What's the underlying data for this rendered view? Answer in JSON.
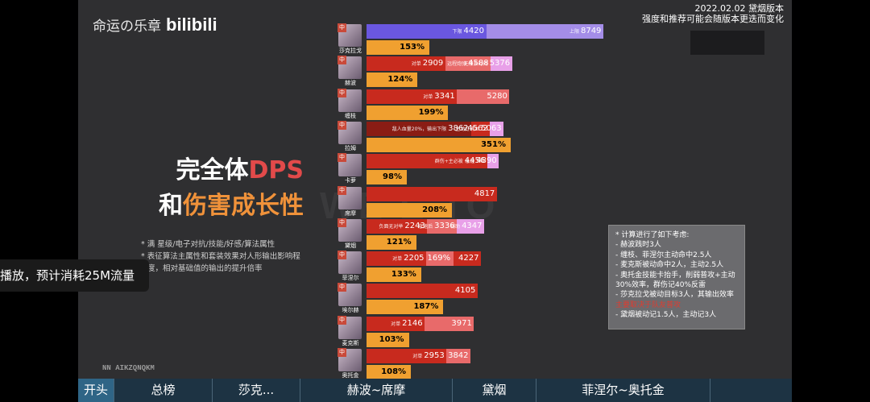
{
  "brand": {
    "name": "命运の乐章",
    "logo": "bilibili"
  },
  "version": {
    "line1": "2022.02.02 黛烟版本",
    "line2": "强度和推荐可能会随版本更迭而变化"
  },
  "headline": {
    "part1": "完全体",
    "part2": "DPS",
    "part3": "和",
    "part4": "伤害成长性"
  },
  "watermark": "WE    E TO",
  "notes": [
    "* 满 星级/电子对抗/技能/好感/算法属性",
    "* 表征算法主属性和套装效果对人形输出影响程",
    "度，相对基础值的输出的提升倍率"
  ],
  "signature": "NN AIKZQNQKM",
  "toast": "播放，预计消耗25M流量",
  "rows": [
    {
      "name": "莎克拉戈",
      "pct": "153%",
      "segs": [
        {
          "label": "下限",
          "value": "4420",
          "end": 4420,
          "color": "#6a57e0"
        },
        {
          "label": "上限",
          "value": "8749",
          "end": 8749,
          "color": "#a48de8"
        }
      ]
    },
    {
      "name": "赫波",
      "pct": "124%",
      "segs": [
        {
          "label": "对单",
          "value": "2909",
          "end": 2909,
          "color": "#c82a1e"
        },
        {
          "label": "远程炮弹",
          "value": "4588",
          "end": 4588,
          "color": "#e86a6a"
        },
        {
          "label": "无限长时间",
          "value": "5376",
          "end": 5376,
          "color": "#e8a0e8"
        }
      ]
    },
    {
      "name": "缠枝",
      "pct": "199%",
      "segs": [
        {
          "label": "对单",
          "value": "3341",
          "end": 3341,
          "color": "#c82a1e"
        },
        {
          "label": "",
          "value": "5280",
          "end": 5280,
          "color": "#e86a6a"
        }
      ]
    },
    {
      "name": "拉姆",
      "pct": "351%",
      "segs": [
        {
          "label": "敌人血量20%，输出下限",
          "value": "3862",
          "end": 3862,
          "color": "#8a1c14"
        },
        {
          "label": "",
          "value": "4562",
          "end": 4562,
          "color": "#c82a1e"
        },
        {
          "label": "主动打满血",
          "value": "5063",
          "end": 5063,
          "color": "#e8a0e8"
        }
      ]
    },
    {
      "name": "卡萝",
      "pct": "98%",
      "segs": [
        {
          "label": "群伤+主必被",
          "value": "4456",
          "end": 4456,
          "color": "#c82a1e"
        },
        {
          "label": "急速",
          "value": "4890",
          "end": 4890,
          "color": "#e8a0e8"
        }
      ]
    },
    {
      "name": "席摩",
      "pct": "208%",
      "segs": [
        {
          "label": "",
          "value": "4817",
          "end": 4817,
          "color": "#c82a1e"
        }
      ]
    },
    {
      "name": "黛烟",
      "pct": "121%",
      "segs": [
        {
          "label": "负面无对举",
          "value": "2243",
          "end": 2243,
          "color": "#c82a1e"
        },
        {
          "label": "急速后",
          "value": "3336",
          "end": 3336,
          "color": "#e86a6a"
        },
        {
          "label": "辅助",
          "value": "4347",
          "end": 4347,
          "color": "#e8a0e8"
        }
      ]
    },
    {
      "name": "菲涅尔",
      "pct": "133%",
      "segs": [
        {
          "label": "对单",
          "value": "2205",
          "end": 2205,
          "color": "#c82a1e"
        },
        {
          "label": "",
          "value": "169%",
          "end": 3200,
          "color": "#e86a6a",
          "center": true
        },
        {
          "label": "",
          "value": "4227",
          "end": 4227,
          "color": "#c82a1e"
        }
      ]
    },
    {
      "name": "埃尔赫",
      "pct": "187%",
      "segs": [
        {
          "label": "",
          "value": "4105",
          "end": 4105,
          "color": "#c82a1e"
        }
      ]
    },
    {
      "name": "麦克斯",
      "pct": "103%",
      "segs": [
        {
          "label": "对单",
          "value": "2146",
          "end": 2146,
          "color": "#c82a1e"
        },
        {
          "label": "",
          "value": "3971",
          "end": 3971,
          "color": "#e86a6a"
        }
      ]
    },
    {
      "name": "奥托金",
      "pct": "108%",
      "segs": [
        {
          "label": "对单",
          "value": "2953",
          "end": 2953,
          "color": "#c82a1e"
        },
        {
          "label": "",
          "value": "3842",
          "end": 3842,
          "color": "#e86a6a"
        }
      ]
    }
  ],
  "pcts": [
    153,
    124,
    199,
    351,
    98,
    208,
    121,
    133,
    187,
    103,
    108
  ],
  "sidenote": {
    "lines": [
      "* 计算进行了如下考虑:",
      "- 赫波践时3人",
      "- 缠枝、菲涅尔主动命中2.5人",
      "- 麦克斯被动命中2人，主动2.5人",
      "- 奥托金技能卡抬手，削弱普攻+主动",
      "  30%效率，群伤记40%反雷",
      "- 莎克拉戈被动目标3人，其输出效率"
    ],
    "red": "  主要取决于队友普攻",
    "last": "- 黛烟被动记1.5人，主动记3人"
  },
  "nav": [
    "开头",
    "总榜",
    "莎克...",
    "赫波~席摩",
    "黛烟",
    "菲涅尔~奥托金"
  ],
  "colors": {
    "nav_bg": "#1d3343",
    "nav_active": "#2f6586",
    "bar_orange": "#f0a030"
  }
}
